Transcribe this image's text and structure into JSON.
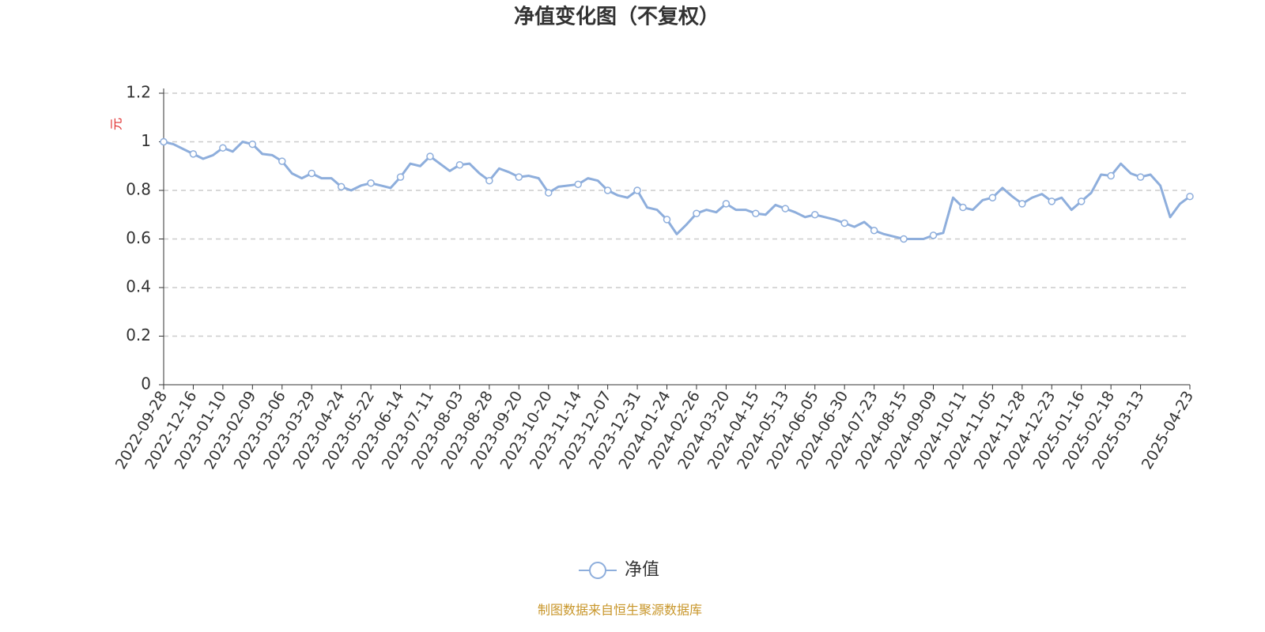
{
  "chart_data": {
    "type": "line",
    "title": "净值变化图（不复权）",
    "y_axis_label": "元",
    "source": "制图数据来自恒生聚源数据库",
    "categories": [
      "2022-09-28",
      null,
      null,
      "2022-12-16",
      null,
      null,
      "2023-01-10",
      null,
      null,
      "2023-02-09",
      null,
      null,
      "2023-03-06",
      null,
      null,
      "2023-03-29",
      null,
      null,
      "2023-04-24",
      null,
      null,
      "2023-05-22",
      null,
      null,
      "2023-06-14",
      null,
      null,
      "2023-07-11",
      null,
      null,
      "2023-08-03",
      null,
      null,
      "2023-08-28",
      null,
      null,
      "2023-09-20",
      null,
      null,
      "2023-10-20",
      null,
      null,
      "2023-11-14",
      null,
      null,
      "2023-12-07",
      null,
      null,
      "2023-12-31",
      null,
      null,
      "2024-01-24",
      null,
      null,
      "2024-02-26",
      null,
      null,
      "2024-03-20",
      null,
      null,
      "2024-04-15",
      null,
      null,
      "2024-05-13",
      null,
      null,
      "2024-06-05",
      null,
      null,
      "2024-06-30",
      null,
      null,
      "2024-07-23",
      null,
      null,
      "2024-08-15",
      null,
      null,
      "2024-09-09",
      null,
      null,
      "2024-10-11",
      null,
      null,
      "2024-11-05",
      null,
      null,
      "2024-11-28",
      null,
      null,
      "2024-12-23",
      null,
      null,
      "2025-01-16",
      null,
      null,
      "2025-02-18",
      null,
      null,
      "2025-03-13",
      null,
      null,
      null,
      null,
      "2025-04-23"
    ],
    "series": [
      {
        "name": "净值",
        "color": "#8eaedc",
        "values": [
          1.0,
          0.99,
          0.97,
          0.95,
          0.93,
          0.945,
          0.975,
          0.96,
          1.0,
          0.99,
          0.95,
          0.945,
          0.92,
          0.87,
          0.85,
          0.87,
          0.85,
          0.85,
          0.815,
          0.8,
          0.82,
          0.83,
          0.82,
          0.81,
          0.855,
          0.91,
          0.9,
          0.94,
          0.91,
          0.88,
          0.905,
          0.91,
          0.87,
          0.84,
          0.89,
          0.875,
          0.855,
          0.86,
          0.85,
          0.79,
          0.815,
          0.82,
          0.825,
          0.85,
          0.84,
          0.8,
          0.78,
          0.77,
          0.8,
          0.73,
          0.72,
          0.68,
          0.62,
          0.66,
          0.705,
          0.72,
          0.71,
          0.745,
          0.72,
          0.72,
          0.705,
          0.7,
          0.74,
          0.725,
          0.71,
          0.69,
          0.7,
          0.69,
          0.68,
          0.665,
          0.65,
          0.67,
          0.635,
          0.62,
          0.61,
          0.6,
          0.6,
          0.6,
          0.615,
          0.625,
          0.77,
          0.73,
          0.72,
          0.76,
          0.77,
          0.81,
          0.775,
          0.745,
          0.77,
          0.785,
          0.755,
          0.77,
          0.72,
          0.755,
          0.79,
          0.865,
          0.86,
          0.91,
          0.87,
          0.855,
          0.865,
          0.82,
          0.69,
          0.745,
          0.775
        ]
      }
    ],
    "ylim": [
      0,
      1.2
    ],
    "yticks": [
      0,
      0.2,
      0.4,
      0.6,
      0.8,
      1,
      1.2
    ],
    "grid": true,
    "legend": "bottom"
  }
}
